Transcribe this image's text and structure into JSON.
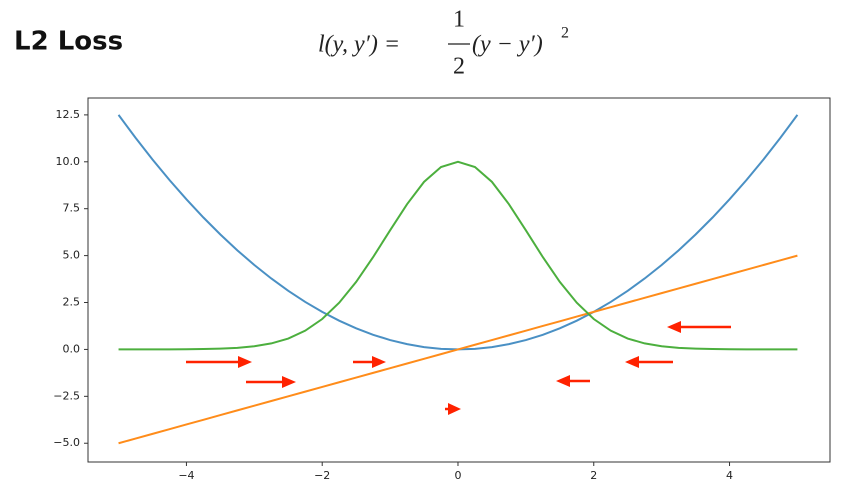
{
  "header": {
    "title": "L2 Loss",
    "formula_lhs": "l(y, y′) =",
    "formula_numerator": "1",
    "formula_denominator": "2",
    "formula_rhs": "(y − y′)",
    "formula_exponent": "2"
  },
  "chart_data": {
    "type": "line",
    "x": [
      -5,
      -4.75,
      -4.5,
      -4.25,
      -4,
      -3.75,
      -3.5,
      -3.25,
      -3,
      -2.75,
      -2.5,
      -2.25,
      -2,
      -1.75,
      -1.5,
      -1.25,
      -1,
      -0.75,
      -0.5,
      -0.25,
      0,
      0.25,
      0.5,
      0.75,
      1,
      1.25,
      1.5,
      1.75,
      2,
      2.25,
      2.5,
      2.75,
      3,
      3.25,
      3.5,
      3.75,
      4,
      4.25,
      4.5,
      4.75,
      5
    ],
    "series": [
      {
        "color": "#4a90c4",
        "values": [
          12.5,
          11.28,
          10.125,
          9.031,
          8,
          7.031,
          6.125,
          5.281,
          4.5,
          3.781,
          3.125,
          2.531,
          2,
          1.531,
          1.125,
          0.781,
          0.5,
          0.281,
          0.125,
          0.031,
          0,
          0.031,
          0.125,
          0.281,
          0.5,
          0.781,
          1.125,
          1.531,
          2,
          2.531,
          3.125,
          3.781,
          4.5,
          5.281,
          6.125,
          7.031,
          8,
          9.031,
          10.125,
          11.28,
          12.5
        ]
      },
      {
        "color": "#ff8c1a",
        "values": [
          -5,
          -4.75,
          -4.5,
          -4.25,
          -4,
          -3.75,
          -3.5,
          -3.25,
          -3,
          -2.75,
          -2.5,
          -2.25,
          -2,
          -1.75,
          -1.5,
          -1.25,
          -1,
          -0.75,
          -0.5,
          -0.25,
          0,
          0.25,
          0.5,
          0.75,
          1,
          1.25,
          1.5,
          1.75,
          2,
          2.25,
          2.5,
          2.75,
          3,
          3.25,
          3.5,
          3.75,
          4,
          4.25,
          4.5,
          4.75,
          5
        ]
      },
      {
        "color": "#4caf3e",
        "values": [
          0,
          0,
          0,
          0,
          0.01,
          0.02,
          0.04,
          0.08,
          0.17,
          0.32,
          0.58,
          1,
          1.62,
          2.49,
          3.6,
          4.92,
          6.35,
          7.74,
          8.93,
          9.72,
          10,
          9.72,
          8.93,
          7.74,
          6.35,
          4.92,
          3.6,
          2.49,
          1.62,
          1,
          0.58,
          0.32,
          0.17,
          0.08,
          0.04,
          0.02,
          0.01,
          0,
          0,
          0,
          0
        ]
      }
    ],
    "xlim": [
      -5.45,
      5.48
    ],
    "ylim": [
      -6.0,
      13.4
    ],
    "xticks": [
      {
        "value": -4,
        "label": "−4"
      },
      {
        "value": -2,
        "label": "−2"
      },
      0,
      2,
      4
    ],
    "yticks": [
      {
        "value": 12.5,
        "label": "12.5"
      },
      {
        "value": 10,
        "label": "10.0"
      },
      {
        "value": 7.5,
        "label": "7.5"
      },
      {
        "value": 5,
        "label": "5.0"
      },
      {
        "value": 2.5,
        "label": "2.5"
      },
      {
        "value": 0,
        "label": "0.0"
      },
      {
        "value": -2.5,
        "label": "−2.5"
      },
      {
        "value": -5,
        "label": "−5.0"
      }
    ],
    "grid": false
  }
}
